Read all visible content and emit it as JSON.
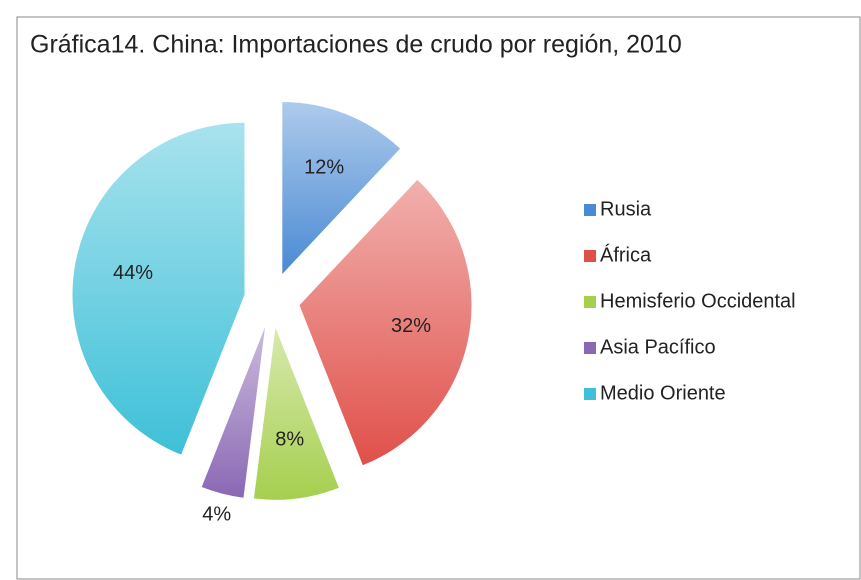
{
  "chart_data": {
    "type": "pie",
    "title": "Gráfica14. China: Importaciones de crudo por región, 2010",
    "categories": [
      "Rusia",
      "África",
      "Hemisferio Occidental",
      "Asia Pacífico",
      "Medio Oriente"
    ],
    "values": [
      12,
      32,
      8,
      4,
      44
    ],
    "value_labels": [
      "12%",
      "32%",
      "8%",
      "4%",
      "44%"
    ],
    "colors": [
      "#4a8ad4",
      "#e0504a",
      "#a6cf4e",
      "#8a68b4",
      "#3ec0d8"
    ],
    "legend": "right"
  }
}
